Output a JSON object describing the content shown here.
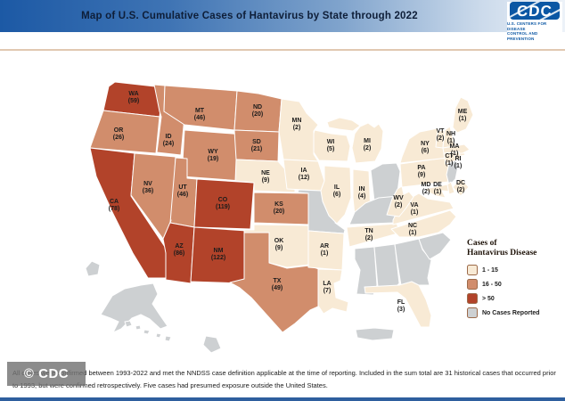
{
  "header": {
    "title": "Map of U.S. Cumulative Cases of Hantavirus by State through 2022"
  },
  "logo": {
    "acronym": "CDC",
    "tagline_line1": "U.S. CENTERS FOR DISEASE",
    "tagline_line2": "CONTROL AND PREVENTION"
  },
  "legend": {
    "title_line1": "Cases of",
    "title_line2": "Hantavirus Disease",
    "items": [
      {
        "label": "1 - 15",
        "category": "low",
        "color": "#F8EAD5"
      },
      {
        "label": "16 - 50",
        "category": "mid",
        "color": "#D18D6C"
      },
      {
        "label": "> 50",
        "category": "high",
        "color": "#B2432A"
      },
      {
        "label": "No Cases Reported",
        "category": "none",
        "color": "#CDD0D2"
      }
    ]
  },
  "chart_data": {
    "type": "heatmap",
    "subtype": "us-state-choropleth",
    "title": "Map of U.S. Cumulative Cases of Hantavirus by State through 2022",
    "bins": [
      "1 - 15",
      "16 - 50",
      "> 50",
      "No Cases Reported"
    ],
    "states": [
      {
        "code": "WA",
        "cases": 59,
        "category": "high"
      },
      {
        "code": "OR",
        "cases": 26,
        "category": "mid"
      },
      {
        "code": "CA",
        "cases": 78,
        "category": "high"
      },
      {
        "code": "NV",
        "cases": 36,
        "category": "mid"
      },
      {
        "code": "ID",
        "cases": 24,
        "category": "mid"
      },
      {
        "code": "MT",
        "cases": 46,
        "category": "mid"
      },
      {
        "code": "WY",
        "cases": 19,
        "category": "mid"
      },
      {
        "code": "UT",
        "cases": 46,
        "category": "mid"
      },
      {
        "code": "CO",
        "cases": 119,
        "category": "high"
      },
      {
        "code": "AZ",
        "cases": 86,
        "category": "high"
      },
      {
        "code": "NM",
        "cases": 122,
        "category": "high"
      },
      {
        "code": "ND",
        "cases": 20,
        "category": "mid"
      },
      {
        "code": "SD",
        "cases": 21,
        "category": "mid"
      },
      {
        "code": "NE",
        "cases": 9,
        "category": "low"
      },
      {
        "code": "KS",
        "cases": 20,
        "category": "mid"
      },
      {
        "code": "OK",
        "cases": 9,
        "category": "low"
      },
      {
        "code": "TX",
        "cases": 49,
        "category": "mid"
      },
      {
        "code": "MN",
        "cases": 2,
        "category": "low"
      },
      {
        "code": "IA",
        "cases": 12,
        "category": "low"
      },
      {
        "code": "MO",
        "cases": null,
        "category": "none"
      },
      {
        "code": "WI",
        "cases": 5,
        "category": "low"
      },
      {
        "code": "MI",
        "cases": 2,
        "category": "low"
      },
      {
        "code": "IL",
        "cases": 6,
        "category": "low"
      },
      {
        "code": "IN",
        "cases": 4,
        "category": "low"
      },
      {
        "code": "OH",
        "cases": null,
        "category": "none"
      },
      {
        "code": "KY",
        "cases": null,
        "category": "none"
      },
      {
        "code": "TN",
        "cases": 2,
        "category": "low"
      },
      {
        "code": "AR",
        "cases": 1,
        "category": "low"
      },
      {
        "code": "LA",
        "cases": 7,
        "category": "low"
      },
      {
        "code": "MS",
        "cases": null,
        "category": "none"
      },
      {
        "code": "AL",
        "cases": null,
        "category": "none"
      },
      {
        "code": "GA",
        "cases": null,
        "category": "none"
      },
      {
        "code": "SC",
        "cases": null,
        "category": "none"
      },
      {
        "code": "FL",
        "cases": 3,
        "category": "low"
      },
      {
        "code": "NC",
        "cases": 1,
        "category": "low"
      },
      {
        "code": "VA",
        "cases": 1,
        "category": "low"
      },
      {
        "code": "WV",
        "cases": 2,
        "category": "low"
      },
      {
        "code": "PA",
        "cases": 9,
        "category": "low"
      },
      {
        "code": "NY",
        "cases": 6,
        "category": "low"
      },
      {
        "code": "NJ",
        "cases": null,
        "category": "none"
      },
      {
        "code": "ME",
        "cases": 1,
        "category": "low"
      },
      {
        "code": "VT",
        "cases": 2,
        "category": "low"
      },
      {
        "code": "NH",
        "cases": 1,
        "category": "low"
      },
      {
        "code": "MA",
        "cases": 1,
        "category": "low"
      },
      {
        "code": "CT",
        "cases": 1,
        "category": "low"
      },
      {
        "code": "RI",
        "cases": 1,
        "category": "low"
      },
      {
        "code": "MD",
        "cases": 2,
        "category": "low"
      },
      {
        "code": "DE",
        "cases": 1,
        "category": "low"
      },
      {
        "code": "DC",
        "cases": 2,
        "category": "low"
      },
      {
        "code": "AK",
        "cases": null,
        "category": "none"
      },
      {
        "code": "HI",
        "cases": null,
        "category": "none"
      },
      {
        "code": "PR",
        "cases": null,
        "category": "none"
      }
    ]
  },
  "footer": {
    "line1": "All cases were confirmed between 1993-2022 and met the NNDSS case definition applicable at the time of reporting. Included in the sum total are 31 historical cases that occurred prior",
    "line2": "to 1993, but were confirmed retrospectively. Five cases had presumed exposure outside the United States."
  },
  "watermark": "© CDC"
}
